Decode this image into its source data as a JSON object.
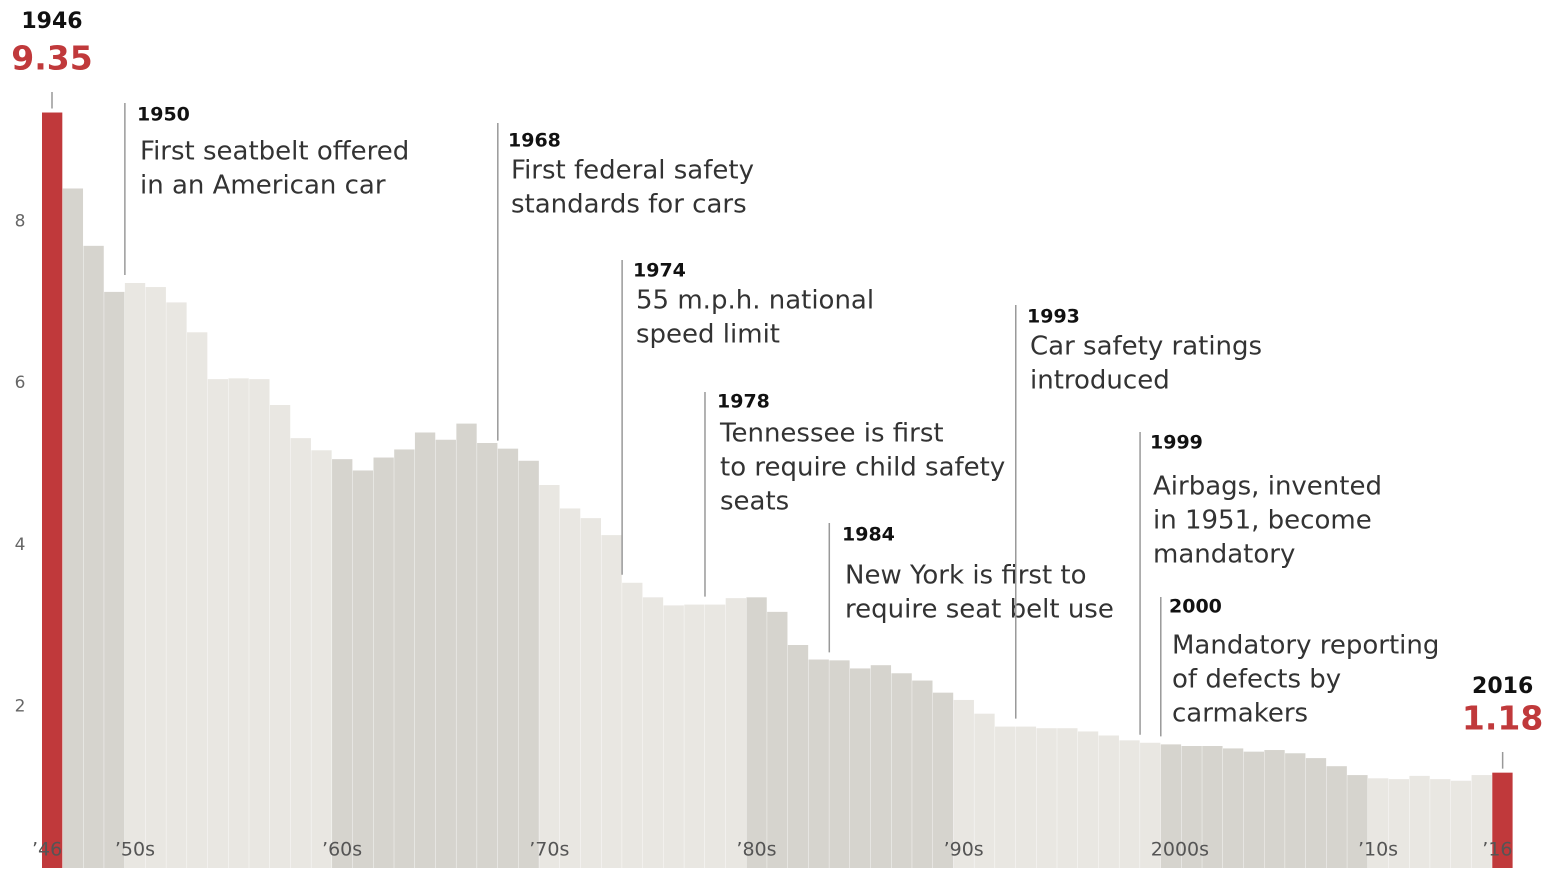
{
  "chart_data": {
    "type": "bar",
    "categories": [
      "’46",
      null,
      null,
      null,
      "’50s",
      null,
      null,
      null,
      null,
      null,
      null,
      null,
      null,
      null,
      "’60s",
      null,
      null,
      null,
      null,
      null,
      null,
      null,
      null,
      null,
      "’70s",
      null,
      null,
      null,
      null,
      null,
      null,
      null,
      null,
      null,
      "’80s",
      null,
      null,
      null,
      null,
      null,
      null,
      null,
      null,
      null,
      "’90s",
      null,
      null,
      null,
      null,
      null,
      null,
      null,
      null,
      null,
      "2000s",
      null,
      null,
      null,
      null,
      null,
      null,
      null,
      null,
      null,
      "’10s",
      null,
      null,
      null,
      null,
      null,
      "’16"
    ],
    "values": [
      9.35,
      8.41,
      7.7,
      7.13,
      7.24,
      7.19,
      7.0,
      6.63,
      6.05,
      6.06,
      6.05,
      5.73,
      5.32,
      5.17,
      5.06,
      4.92,
      5.08,
      5.18,
      5.39,
      5.3,
      5.5,
      5.26,
      5.19,
      5.04,
      4.74,
      4.45,
      4.33,
      4.12,
      3.53,
      3.35,
      3.25,
      3.26,
      3.26,
      3.34,
      3.35,
      3.17,
      2.76,
      2.58,
      2.57,
      2.47,
      2.51,
      2.41,
      2.32,
      2.17,
      2.08,
      1.91,
      1.75,
      1.75,
      1.73,
      1.73,
      1.69,
      1.64,
      1.58,
      1.55,
      1.53,
      1.51,
      1.51,
      1.48,
      1.44,
      1.46,
      1.42,
      1.36,
      1.26,
      1.15,
      1.11,
      1.1,
      1.14,
      1.1,
      1.08,
      1.15,
      1.18
    ],
    "color": "#d6d4ce",
    "alt_color": "#e9e7e2",
    "highlight_color": "#c0393b",
    "start_label": "1946",
    "end_label": "2016",
    "ylim": [
      0,
      10
    ],
    "yticks": [
      2,
      4,
      6,
      8
    ],
    "grid": false,
    "annotations": [
      {
        "year": "1950",
        "text": [
          "First seatbelt offered",
          "in an American car"
        ],
        "bar": 4
      },
      {
        "year": "1968",
        "text": [
          "First federal safety",
          "standards for cars"
        ],
        "bar": 22
      },
      {
        "year": "1974",
        "text": [
          "55 m.p.h. national",
          "speed limit"
        ],
        "bar": 28
      },
      {
        "year": "1978",
        "text": [
          "Tennessee is first",
          "to require child safety",
          "seats"
        ],
        "bar": 32
      },
      {
        "year": "1984",
        "text": [
          "New York is first to",
          "require seat belt use"
        ],
        "bar": 38
      },
      {
        "year": "1993",
        "text": [
          "Car safety ratings",
          "introduced"
        ],
        "bar": 47
      },
      {
        "year": "1999",
        "text": [
          "Airbags, invented",
          "in 1951, become",
          "mandatory"
        ],
        "bar": 53
      },
      {
        "year": "2000",
        "text": [
          "Mandatory reporting",
          "of defects by",
          "carmakers"
        ],
        "bar": 54
      }
    ]
  }
}
